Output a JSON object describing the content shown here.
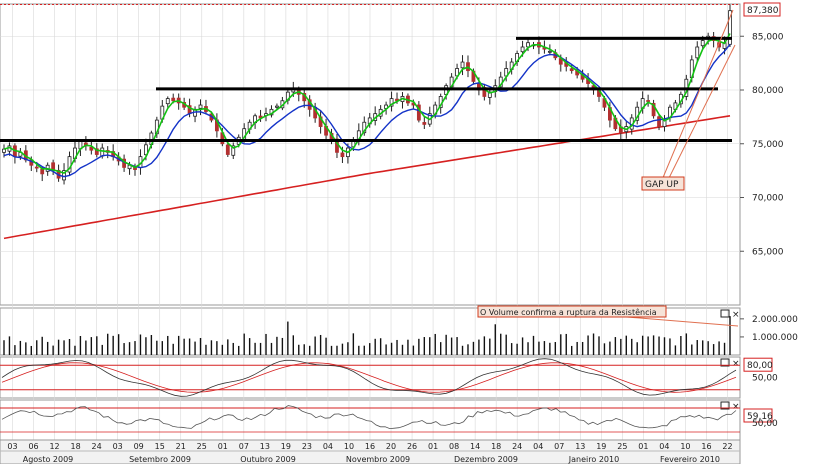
{
  "chart_data": {
    "type": "candlestick",
    "main": {
      "ylim": [
        60000,
        88000
      ],
      "y_ticks": [
        65000,
        70000,
        75000,
        80000,
        85000
      ],
      "y_tick_labels": [
        "65,000",
        "70,000",
        "75,000",
        "80,000",
        "85,000"
      ],
      "last_price_label": "87,380",
      "last_price": 87380,
      "resistance_levels": [
        {
          "value": 75300,
          "from": "Jul 2009",
          "to": "Feb 2010"
        },
        {
          "value": 80100,
          "from": "Set 2009",
          "to": "Feb 2010"
        },
        {
          "value": 84800,
          "from": "Dez 2009",
          "to": "Feb 2010"
        }
      ],
      "annotation_gap": "GAP UP",
      "candles_approx": [
        74500,
        74800,
        73800,
        74200,
        73500,
        73000,
        72800,
        72200,
        73000,
        72500,
        71800,
        72500,
        73800,
        74600,
        75200,
        74800,
        74400,
        74000,
        74600,
        74200,
        73800,
        73400,
        72800,
        73000,
        72600,
        73800,
        74900,
        76000,
        77200,
        78500,
        79200,
        79000,
        78800,
        78400,
        77800,
        78200,
        78600,
        78000,
        77200,
        76200,
        75000,
        74000,
        74800,
        75600,
        76400,
        77000,
        77600,
        77400,
        77800,
        78200,
        78500,
        79000,
        79800,
        80100,
        79600,
        79000,
        78200,
        77400,
        76600,
        75800,
        75200,
        74200,
        73800,
        74600,
        75400,
        76200,
        77000,
        77400,
        77800,
        78200,
        78600,
        79200,
        79000,
        79400,
        78800,
        78600,
        77200,
        76800,
        77800,
        78600,
        79400,
        80400,
        81200,
        82000,
        82600,
        81800,
        80800,
        80000,
        79400,
        79800,
        80400,
        81200,
        82000,
        82600,
        83400,
        84000,
        84400,
        84200,
        84000,
        83800,
        83600,
        83000,
        82400,
        82200,
        81800,
        81400,
        81000,
        80600,
        80000,
        79400,
        78400,
        77200,
        76400,
        76000,
        76600,
        77400,
        78400,
        79200,
        79000,
        77600,
        76600,
        77200,
        78400,
        78800,
        79600,
        81000,
        82800,
        84000,
        84600,
        85000,
        84600,
        84000,
        84400,
        87380
      ],
      "sma_slow_approx": [
        66200,
        72200,
        77600
      ]
    },
    "volume": {
      "tick_labels": [
        "2.000.000",
        "1.000.000"
      ],
      "y_ticks": [
        2000000,
        1000000
      ],
      "annotation": "O Volume confirma a ruptura da Resistência"
    },
    "stochastic": {
      "level_label": "80,00",
      "mid_label": "50,00",
      "levels": [
        80,
        50
      ]
    },
    "oscillator2": {
      "level_label": "59,16",
      "mid_label": "50,00"
    },
    "x_axis": {
      "day_labels": [
        "03",
        "06",
        "12",
        "18",
        "24",
        "03",
        "09",
        "15",
        "21",
        "25",
        "01",
        "07",
        "13",
        "19",
        "23",
        "04",
        "10",
        "16",
        "20",
        "26",
        "01",
        "08",
        "14",
        "18",
        "24",
        "04",
        "07",
        "13",
        "19",
        "25",
        "01",
        "04",
        "10",
        "16",
        "22"
      ],
      "month_labels": [
        "Agosto 2009",
        "Setembro 2009",
        "Outubro 2009",
        "Novembro 2009",
        "Dezembro 2009",
        "Janeiro 2010",
        "Fevereiro 2010"
      ]
    },
    "panel_icon_label": "×"
  },
  "colors": {
    "candle_up": "#1a1a1a",
    "candle_down": "#b23030",
    "ma_fast": "#12c212",
    "ma_mid": "#1433c8",
    "ma_slow": "#d62020",
    "resistance": "#000000",
    "annotation_border": "#d03b1c",
    "annotation_fill": "#f6e3d8",
    "grid": "#d8d8d8"
  }
}
